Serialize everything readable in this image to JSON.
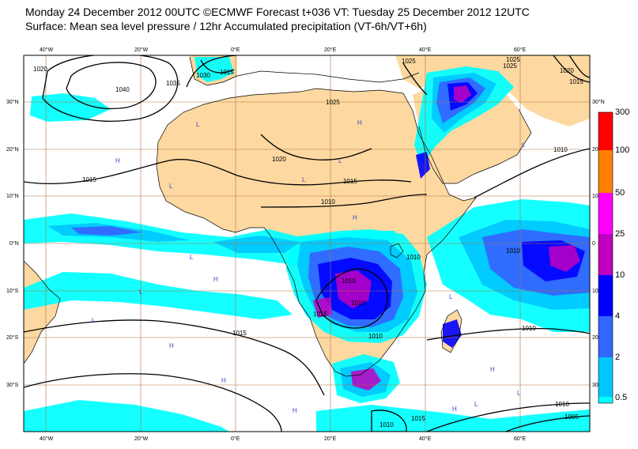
{
  "header": {
    "line1": "Monday 24 December 2012 00UTC ©ECMWF Forecast t+036 VT: Tuesday 25 December 2012 12UTC",
    "line2": "Surface: Mean sea level pressure / 12hr Accumulated precipitation (VT-6h/VT+6h)"
  },
  "axes": {
    "lon_top": [
      "40°W",
      "20°W",
      "0°E",
      "20°E",
      "40°E",
      "60°E"
    ],
    "lon_bottom": [
      "40°W",
      "20°W",
      "0°E",
      "20°E",
      "40°E",
      "60°E"
    ],
    "lat_left": [
      "30°N",
      "20°N",
      "10°N",
      "0°N",
      "10°S",
      "20°S",
      "30°S"
    ],
    "lat_right": [
      "30°N",
      "20",
      "10",
      "0",
      "10",
      "20",
      "30"
    ]
  },
  "legend": {
    "labels": [
      "300",
      "100",
      "50",
      "25",
      "10",
      "4",
      "2",
      "0.5"
    ],
    "colors": [
      "#ff0000",
      "#ff8000",
      "#ff00ff",
      "#c000c0",
      "#0000ff",
      "#3366ff",
      "#00c8ff",
      "#00ffff"
    ]
  },
  "isobars": [
    {
      "value": "1020"
    },
    {
      "value": "1030"
    },
    {
      "value": "1035"
    },
    {
      "value": "1040"
    },
    {
      "value": "1015"
    },
    {
      "value": "1025"
    },
    {
      "value": "1025"
    },
    {
      "value": "1015"
    },
    {
      "value": "1010"
    },
    {
      "value": "1025"
    },
    {
      "value": "1020"
    },
    {
      "value": "1015"
    },
    {
      "value": "1010"
    },
    {
      "value": "1015"
    },
    {
      "value": "1010"
    },
    {
      "value": "1010"
    },
    {
      "value": "1015"
    },
    {
      "value": "1010"
    },
    {
      "value": "1010"
    },
    {
      "value": "1010"
    },
    {
      "value": "1010"
    },
    {
      "value": "1015"
    },
    {
      "value": "1010"
    },
    {
      "value": "1010"
    },
    {
      "value": "1005"
    },
    {
      "value": "1015"
    },
    {
      "value": "1025"
    },
    {
      "value": "1020"
    }
  ],
  "pressure_centres": {
    "high": "H",
    "low": "L"
  },
  "colors": {
    "land": "#fdd9a1",
    "ocean": "#ffffff",
    "grid": "#b07040",
    "coast": "#000000"
  }
}
